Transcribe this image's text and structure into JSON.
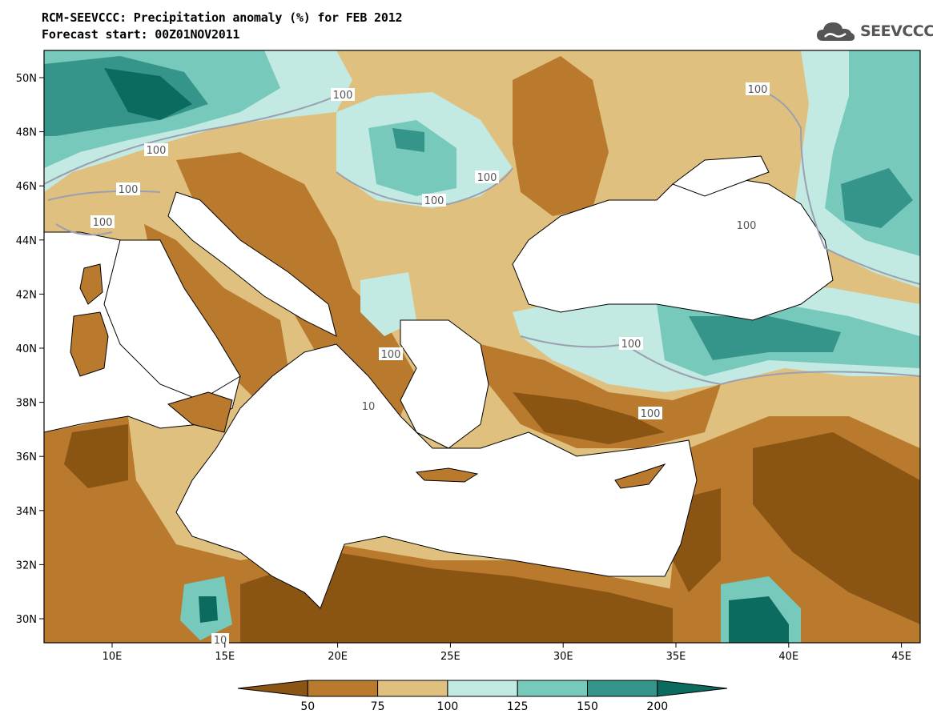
{
  "title": {
    "line1": "RCM-SEEVCCC: Precipitation anomaly (%) for FEB 2012",
    "line2": "Forecast start: 00Z01NOV2011"
  },
  "logo": {
    "text": "SEEVCCC",
    "icon": "cloud-icon"
  },
  "axes": {
    "lat_ticks": [
      "50N",
      "48N",
      "46N",
      "44N",
      "42N",
      "40N",
      "38N",
      "36N",
      "34N",
      "32N",
      "30N"
    ],
    "lon_ticks": [
      "10E",
      "15E",
      "20E",
      "25E",
      "30E",
      "35E",
      "40E",
      "45E"
    ]
  },
  "contour_labels": [
    "100",
    "100",
    "100",
    "100",
    "100",
    "100",
    "100",
    "100",
    "100",
    "100",
    "10",
    "10",
    "100"
  ],
  "colorbar": {
    "labels": [
      "50",
      "75",
      "100",
      "125",
      "150",
      "200"
    ],
    "colors": [
      "#8a5413",
      "#b97a2e",
      "#e0c07e",
      "#c2e9e2",
      "#76c9bb",
      "#36958a",
      "#0c6b5f"
    ]
  },
  "colors": {
    "sea": "#ffffff",
    "dry_strong": "#8a5413",
    "dry": "#b97a2e",
    "dry_light": "#e0c07e",
    "wet_light": "#c2e9e2",
    "wet": "#76c9bb",
    "wet_strong": "#36958a",
    "wet_extreme": "#0c6b5f"
  }
}
